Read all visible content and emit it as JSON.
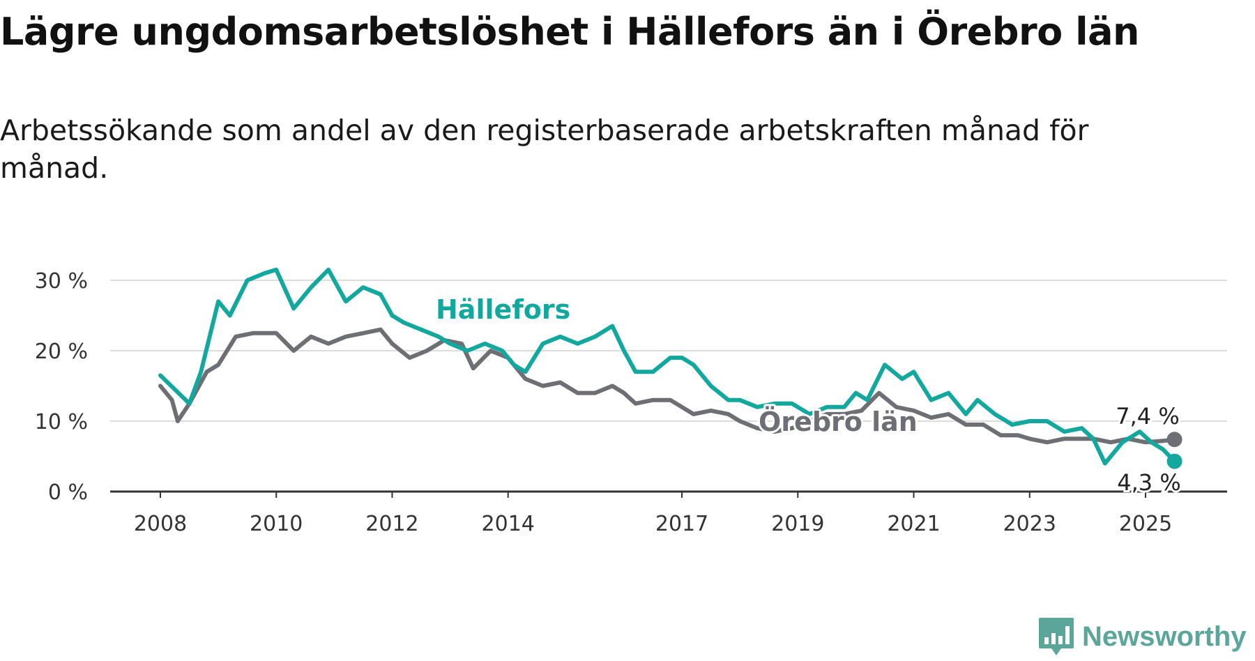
{
  "title": "Lägre ungdomsarbetslöshet i Hällefors än i Örebro län",
  "subtitle": "Arbetssökande som andel av den registerbaserade arbetskraften månad för månad.",
  "logo": "Newsworthy",
  "colors": {
    "hallefors": "#13a89e",
    "orebro": "#6e6e75",
    "grid": "#dddddd",
    "axis": "#333333",
    "logo": "#5aa69b"
  },
  "chart_data": {
    "type": "line",
    "title": "Lägre ungdomsarbetslöshet i Hällefors än i Örebro län",
    "ylim": [
      0,
      32
    ],
    "y_ticks": [
      0,
      10,
      20,
      30
    ],
    "y_tick_labels": [
      "0 %",
      "10 %",
      "20 %",
      "30 %"
    ],
    "x_ticks": [
      2008,
      2010,
      2012,
      2014,
      2017,
      2019,
      2021,
      2023,
      2025
    ],
    "x_tick_labels": [
      "2008",
      "2010",
      "2012",
      "2014",
      "2017",
      "2019",
      "2021",
      "2023",
      "2025"
    ],
    "grid": true,
    "series": [
      {
        "name": "Hällefors",
        "end_label": "4,3 %",
        "x": [
          2008.0,
          2008.5,
          2008.7,
          2009.0,
          2009.2,
          2009.5,
          2009.8,
          2010.0,
          2010.3,
          2010.6,
          2010.9,
          2011.2,
          2011.5,
          2011.8,
          2012.0,
          2012.2,
          2012.5,
          2012.8,
          2013.0,
          2013.3,
          2013.6,
          2013.9,
          2014.1,
          2014.3,
          2014.6,
          2014.9,
          2015.2,
          2015.5,
          2015.8,
          2016.0,
          2016.2,
          2016.5,
          2016.8,
          2017.0,
          2017.2,
          2017.5,
          2017.8,
          2018.0,
          2018.3,
          2018.6,
          2018.9,
          2019.2,
          2019.5,
          2019.8,
          2020.0,
          2020.2,
          2020.5,
          2020.8,
          2021.0,
          2021.3,
          2021.6,
          2021.9,
          2022.1,
          2022.4,
          2022.7,
          2023.0,
          2023.3,
          2023.6,
          2023.9,
          2024.1,
          2024.3,
          2024.6,
          2024.9,
          2025.1,
          2025.3,
          2025.5
        ],
        "values": [
          16.5,
          12.5,
          17,
          27,
          25,
          30,
          31,
          31.5,
          26,
          29,
          31.5,
          27,
          29,
          28,
          25,
          24,
          23,
          22,
          21,
          20,
          21,
          20,
          18,
          17,
          21,
          22,
          21,
          22,
          23.5,
          20,
          17,
          17,
          19,
          19,
          18,
          15,
          13,
          13,
          12,
          12.5,
          12.5,
          11,
          12,
          12,
          14,
          13,
          18,
          16,
          17,
          13,
          14,
          11,
          13,
          11,
          9.5,
          10,
          10,
          8.5,
          9,
          7.5,
          4,
          7,
          8.5,
          7,
          6,
          4.3
        ]
      },
      {
        "name": "Örebro län",
        "end_label": "7,4 %",
        "x": [
          2008.0,
          2008.2,
          2008.3,
          2008.5,
          2008.8,
          2009.0,
          2009.3,
          2009.6,
          2010.0,
          2010.3,
          2010.6,
          2010.9,
          2011.2,
          2011.5,
          2011.8,
          2012.0,
          2012.3,
          2012.6,
          2012.9,
          2013.2,
          2013.4,
          2013.7,
          2014.0,
          2014.3,
          2014.6,
          2014.9,
          2015.2,
          2015.5,
          2015.8,
          2016.0,
          2016.2,
          2016.5,
          2016.8,
          2017.0,
          2017.2,
          2017.5,
          2017.8,
          2018.0,
          2018.3,
          2018.6,
          2018.9,
          2019.2,
          2019.5,
          2019.8,
          2020.1,
          2020.4,
          2020.7,
          2021.0,
          2021.3,
          2021.6,
          2021.9,
          2022.2,
          2022.5,
          2022.8,
          2023.0,
          2023.3,
          2023.6,
          2023.9,
          2024.1,
          2024.4,
          2024.7,
          2025.0,
          2025.3,
          2025.5
        ],
        "values": [
          15,
          13,
          10,
          12.5,
          17,
          18,
          22,
          22.5,
          22.5,
          20,
          22,
          21,
          22,
          22.5,
          23,
          21,
          19,
          20,
          21.5,
          21,
          17.5,
          20,
          19,
          16,
          15,
          15.5,
          14,
          14,
          15,
          14,
          12.5,
          13,
          13,
          12,
          11,
          11.5,
          11,
          10,
          9,
          8.5,
          9,
          10,
          11,
          11,
          11.5,
          14,
          12,
          11.5,
          10.5,
          11,
          9.5,
          9.5,
          8,
          8,
          7.5,
          7,
          7.5,
          7.5,
          7.5,
          7,
          7.5,
          7,
          7.2,
          7.4
        ]
      }
    ]
  }
}
